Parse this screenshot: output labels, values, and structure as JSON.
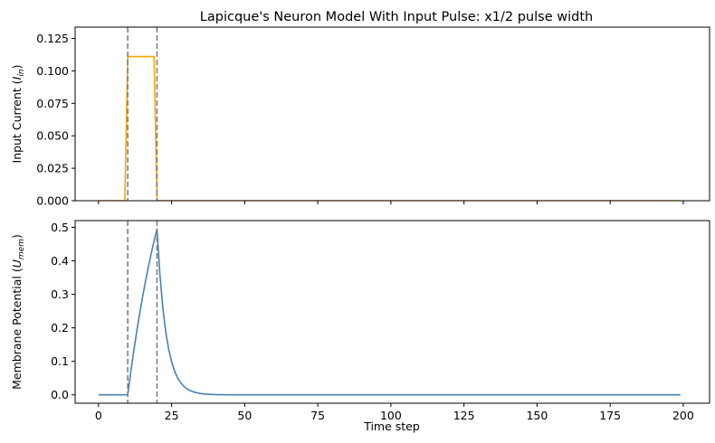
{
  "chart_data": {
    "type": "line",
    "title": "Lapicque's Neuron Model With Input Pulse: x1/2 pulse width",
    "xlabel": "Time step",
    "xlim": [
      -8,
      209
    ],
    "xticks": [
      0,
      25,
      50,
      75,
      100,
      125,
      150,
      175,
      200
    ],
    "xtick_labels": [
      "0",
      "25",
      "50",
      "75",
      "100",
      "125",
      "150",
      "175",
      "200"
    ],
    "grid": false,
    "colors": {
      "input": "#ffa500",
      "membrane": "#4682b4",
      "marker": "#808080"
    },
    "vlines": [
      10,
      20
    ],
    "panels": [
      {
        "id": "input",
        "ylabel_main": "Input Current (",
        "ylabel_var": "I",
        "ylabel_sub": "in",
        "ylabel_end": ")",
        "ylim": [
          0.0,
          0.1337
        ],
        "yticks": [
          0.0,
          0.025,
          0.05,
          0.075,
          0.1,
          0.125
        ],
        "ytick_labels": [
          "0.000",
          "0.025",
          "0.050",
          "0.075",
          "0.100",
          "0.125"
        ],
        "show_xtick_labels": false,
        "series": [
          {
            "x": [
              0,
              9,
              10,
              19,
              20,
              199
            ],
            "y": [
              0,
              0,
              0.111,
              0.111,
              0,
              0
            ]
          }
        ]
      },
      {
        "id": "membrane",
        "ylabel_main": "Membrane Potential (",
        "ylabel_var": "U",
        "ylabel_sub": "mem",
        "ylabel_end": ")",
        "ylim": [
          -0.025,
          0.52
        ],
        "yticks": [
          0.0,
          0.1,
          0.2,
          0.3,
          0.4,
          0.5
        ],
        "ytick_labels": [
          "0.0",
          "0.1",
          "0.2",
          "0.3",
          "0.4",
          "0.5"
        ],
        "show_xtick_labels": true,
        "series": [
          {
            "generator": "lapicque",
            "t_on": 10,
            "t_off": 20,
            "t_end": 199,
            "u_peak": 0.495,
            "tau_rise": 14.8,
            "tau_fall": 3.1
          }
        ]
      }
    ]
  }
}
